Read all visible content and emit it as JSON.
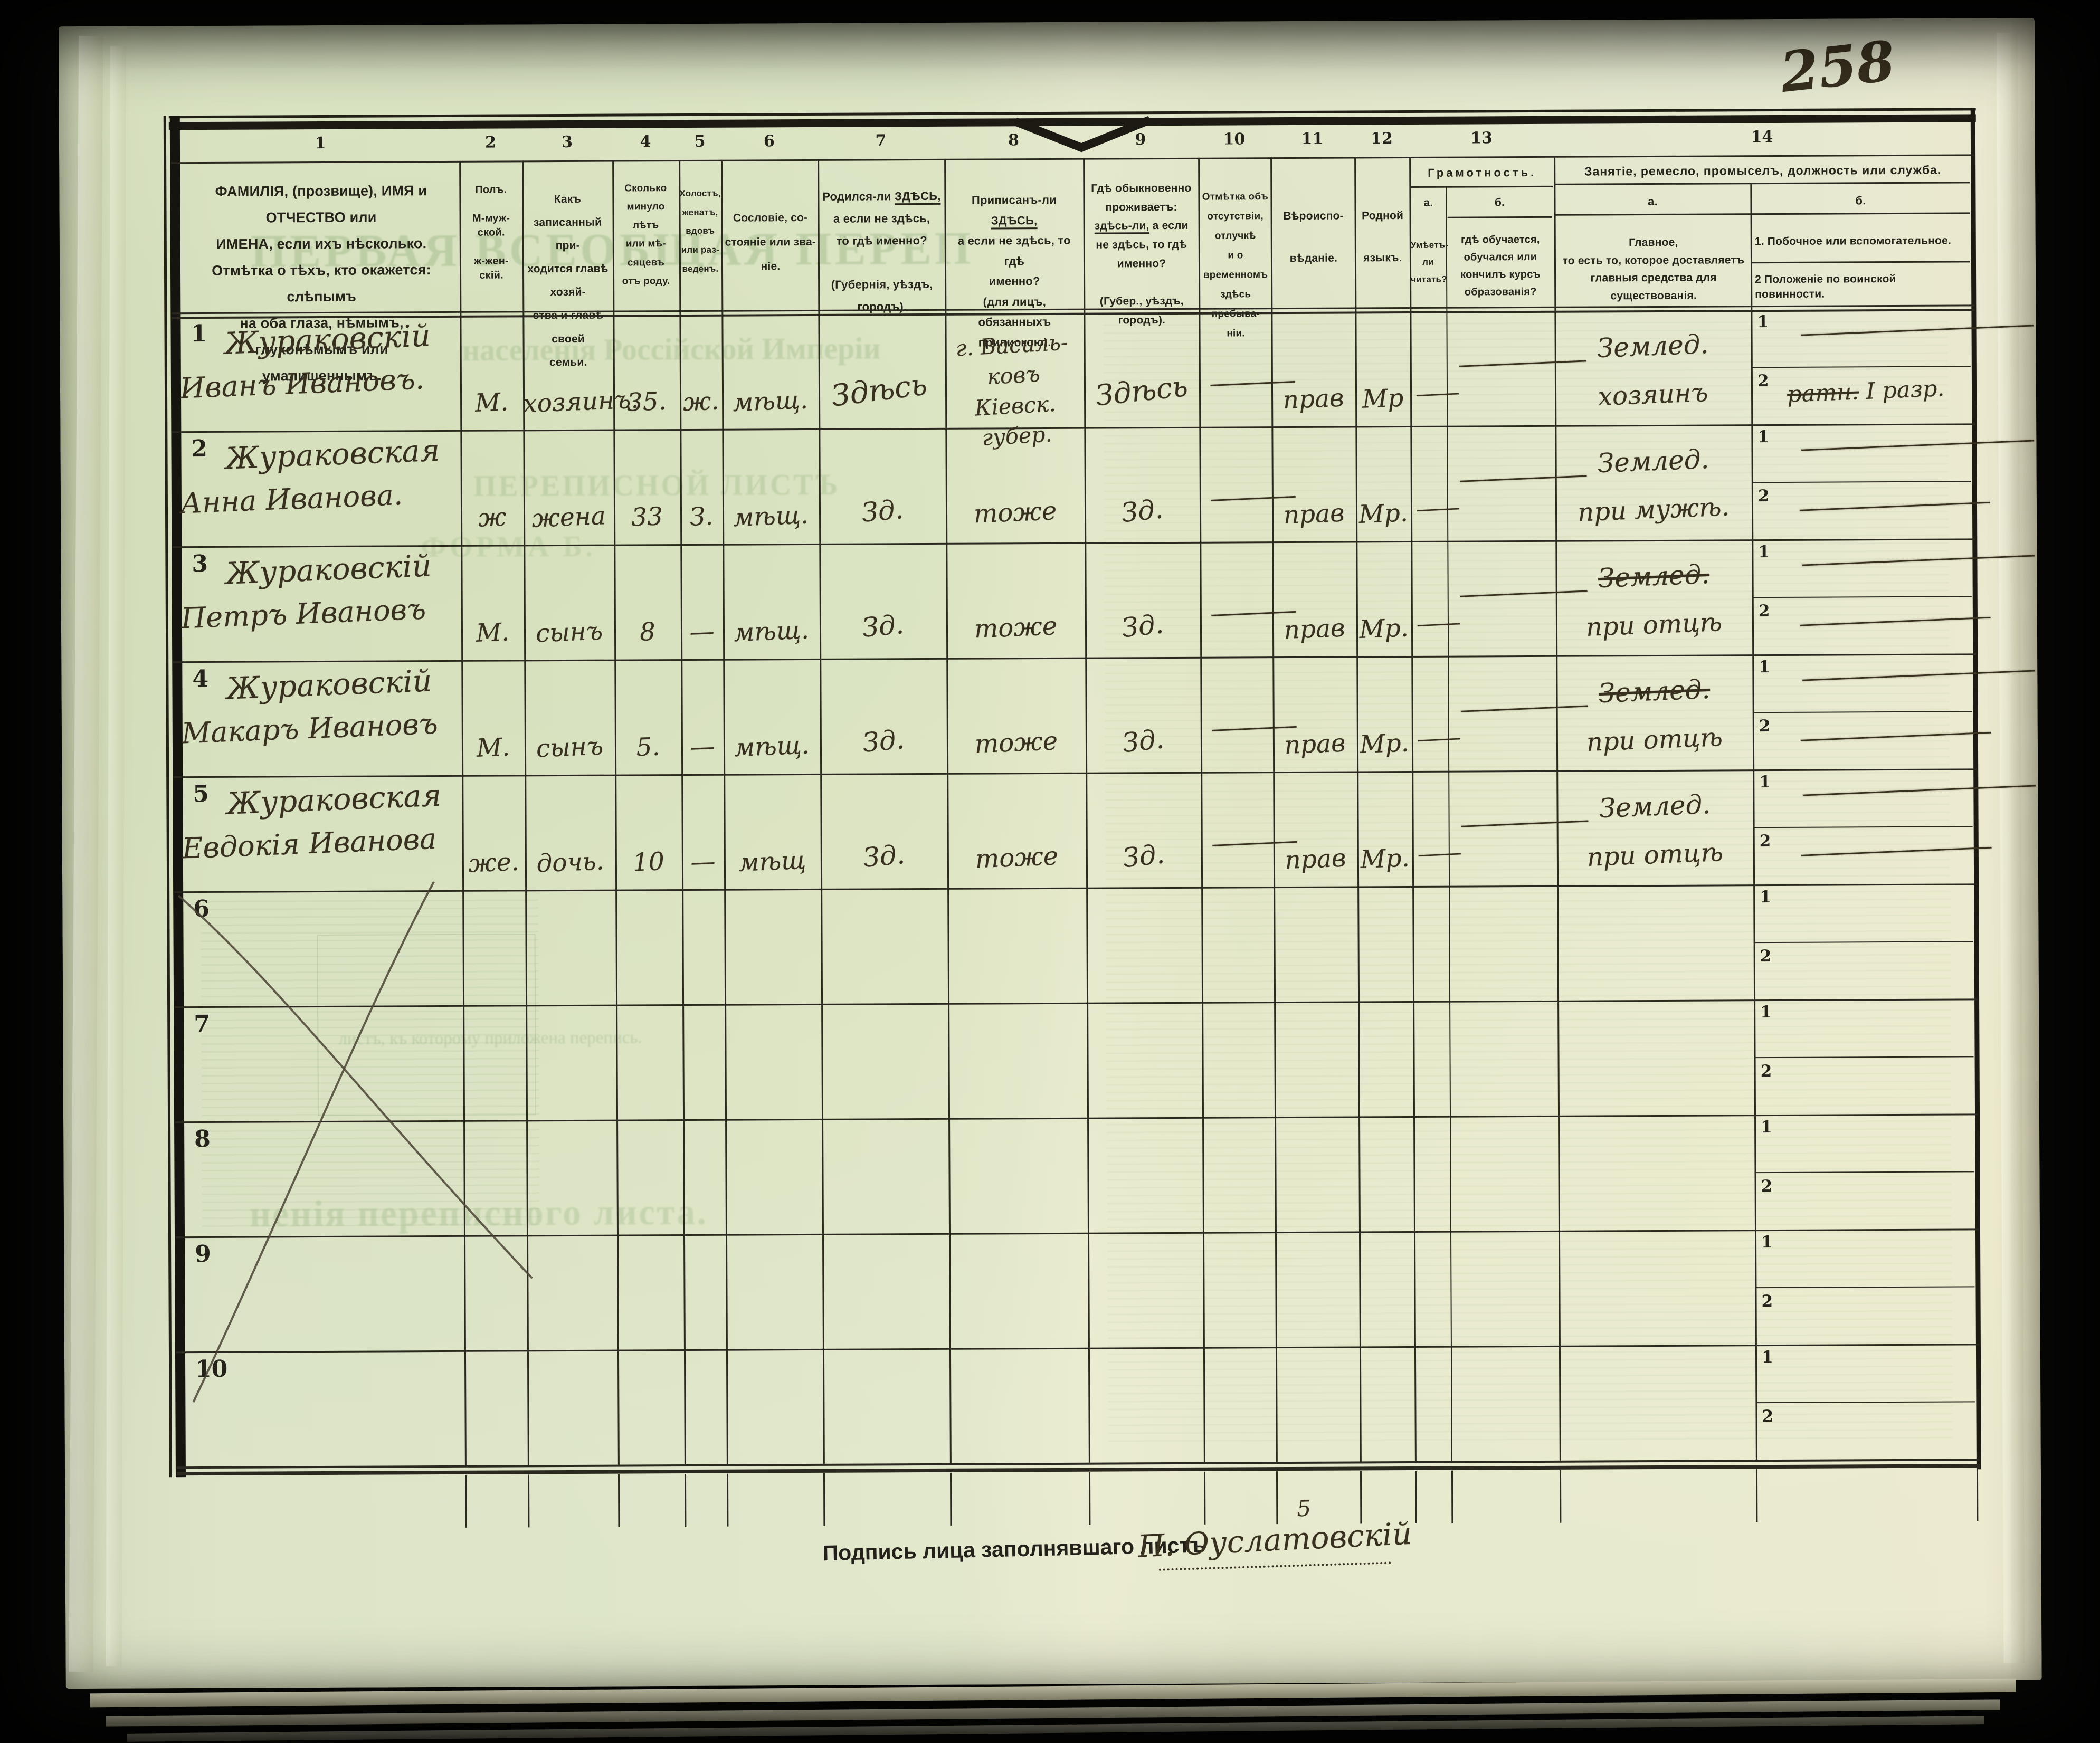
{
  "page_number": "258",
  "table": {
    "col_numbers": [
      "1",
      "2",
      "3",
      "4",
      "5",
      "6",
      "7",
      "8",
      "9",
      "10",
      "11",
      "12",
      "13",
      "14"
    ],
    "sub_labels": [
      "1",
      "2"
    ],
    "headers": {
      "c1": "ФАМИЛІЯ, (прозвище), ИМЯ и ОТЧЕСТВО или\nИМЕНА, если ихъ нѣсколько.\nОтмѣтка о тѣхъ, кто окажется: слѣпымъ\nна оба глаза, нѣмымъ, глухонѣмымъ или\nумалишеннымъ.",
      "c2": "Полъ.\n\nМ-муж-\nской.\n\nж-жен-\nскій.",
      "c3": "Какъ записанный при-\nходится главѣ хозяй-\nства и главѣ своей\nсемьи.",
      "c4": "Сколько\nминуло\nлѣтъ\nили мѣ-\nсяцевъ\nотъ роду.",
      "c5": "Холостъ,\nженатъ,\nвдовъ\nили раз-\nведенъ.",
      "c6": "Сословіе, со-\nстояніе или зва-\nніе.",
      "c7": {
        "a": "Родился-ли ",
        "b": "ЗДѢСЬ,",
        "c": "\nа если не здѣсь,\nто гдѣ именно?\n\n(Губернія, уѣздъ, городъ)."
      },
      "c8": {
        "a": "Приписанъ-ли ",
        "b": "ЗДѢСЬ,",
        "c": "\nа если не здѣсь, то гдѣ\nименно?\n(для лицъ, обязанныхъ\nприпискою)."
      },
      "c9": {
        "a": "Гдѣ обыкновенно\nпроживаетъ:\n",
        "b": "здѣсь-ли,",
        "c": " а если\nне здѣсь, то гдѣ\nименно?\n\n(Губер., уѣздъ, городъ)."
      },
      "c10": "Отмѣтка объ\nотсутствіи, отлучкѣ\nи о временномъ\nздѣсь пребыва-\nніи.",
      "c11": "Вѣроиспо-\n\nвѣданіе.",
      "c12": "Родной\n\nязыкъ.",
      "c13": {
        "title": "Грамотность.",
        "a_label": "а.",
        "b_label": "б.",
        "a_text": "Умѣетъ-\nли\nчитать?",
        "b_text": "гдѣ обучается,\nобучался или\nкончилъ курсъ\nобразованія?"
      },
      "c14": {
        "title": "Занятіе, ремесло, промыселъ, должность или служба.",
        "a_label": "а.",
        "b_label": "б.",
        "a_text": "Главное,\nто есть то, которое доставляетъ\nглавныя средства для существованія.",
        "b1_text": "1.  Побочное или вспомогательное.",
        "b2_text": "2  Положеніе по воинской повинности."
      }
    }
  },
  "rows": [
    {
      "num": "1",
      "surname": "Жураковскій",
      "given": "Иванъ Ивановъ.",
      "sex": "М.",
      "relation": "хозяинъ.",
      "age": "35.",
      "marital": "ж.",
      "estate": "мѣщ.",
      "born": "Здѣсь",
      "registered": "г. Василь-\nковъ Кіевск.\nгубер.",
      "lives": "Здѣсь",
      "absent": "—",
      "religion": "прав",
      "language": "Мр",
      "lit_a": "—",
      "lit_b": "—",
      "occ_main": "Землед.",
      "occ_main_struck": false,
      "occ_sub": "хозяинъ",
      "side1": "—",
      "side2_struck": "ратн.",
      "side2": "І разр."
    },
    {
      "num": "2",
      "surname": "Жураковская",
      "given": "Анна Иванова.",
      "sex": "ж",
      "relation": "жена",
      "age": "33",
      "marital": "З.",
      "estate": "мѣщ.",
      "born": "Зд.",
      "registered": "тоже",
      "lives": "Зд.",
      "absent": "—",
      "religion": "прав",
      "language": "Мр.",
      "lit_a": "—",
      "lit_b": "—",
      "occ_main": "Землед.",
      "occ_main_struck": false,
      "occ_sub": "при мужѣ.",
      "side1": "—",
      "side2": "—"
    },
    {
      "num": "3",
      "surname": "Жураковскій",
      "given": "Петръ Ивановъ",
      "sex": "М.",
      "relation": "сынъ",
      "age": "8",
      "marital": "—",
      "estate": "мѣщ.",
      "born": "Зд.",
      "registered": "тоже",
      "lives": "Зд.",
      "absent": "—",
      "religion": "прав",
      "language": "Мр.",
      "lit_a": "—",
      "lit_b": "—",
      "occ_main": "Землед.",
      "occ_main_struck": true,
      "occ_sub": "при отцѣ",
      "side1": "—",
      "side2": "—"
    },
    {
      "num": "4",
      "surname": "Жураковскій",
      "given": "Макаръ Ивановъ",
      "sex": "М.",
      "relation": "сынъ",
      "age": "5.",
      "marital": "—",
      "estate": "мѣщ.",
      "born": "Зд.",
      "registered": "тоже",
      "lives": "Зд.",
      "absent": "—",
      "religion": "прав",
      "language": "Мр.",
      "lit_a": "—",
      "lit_b": "—",
      "occ_main": "Землед.",
      "occ_main_struck": true,
      "occ_sub": "при отцѣ",
      "side1": "—",
      "side2": "—"
    },
    {
      "num": "5",
      "surname": "Жураковская",
      "given": "Евдокія Иванова",
      "sex": "же.",
      "relation": "дочь.",
      "age": "10",
      "marital": "—",
      "estate": "мѣщ",
      "born": "Зд.",
      "registered": "тоже",
      "lives": "Зд.",
      "absent": "—",
      "religion": "прав",
      "language": "Мр.",
      "lit_a": "—",
      "lit_b": "—",
      "occ_main": "Землед.",
      "occ_main_struck": false,
      "occ_sub": "при отцѣ",
      "side1": "—",
      "side2": "—"
    },
    {
      "num": "6"
    },
    {
      "num": "7"
    },
    {
      "num": "8"
    },
    {
      "num": "9"
    },
    {
      "num": "10"
    }
  ],
  "footer": {
    "signature_label": "Подпись лица заполнявшаго листъ",
    "signature": "П. Оуслатовскій",
    "signature_mark": "5"
  },
  "ghost_text": [
    "ПЕРВАЯ ВСЕОБЩАЯ ПЕРЕП",
    "населенія Россійской Имперіи",
    "ПЕРЕПИСНОЙ ЛИСТЪ",
    "ФОРМА Б.",
    "листъ, къ которому приложена перепись.",
    "ненія переписного листа."
  ]
}
